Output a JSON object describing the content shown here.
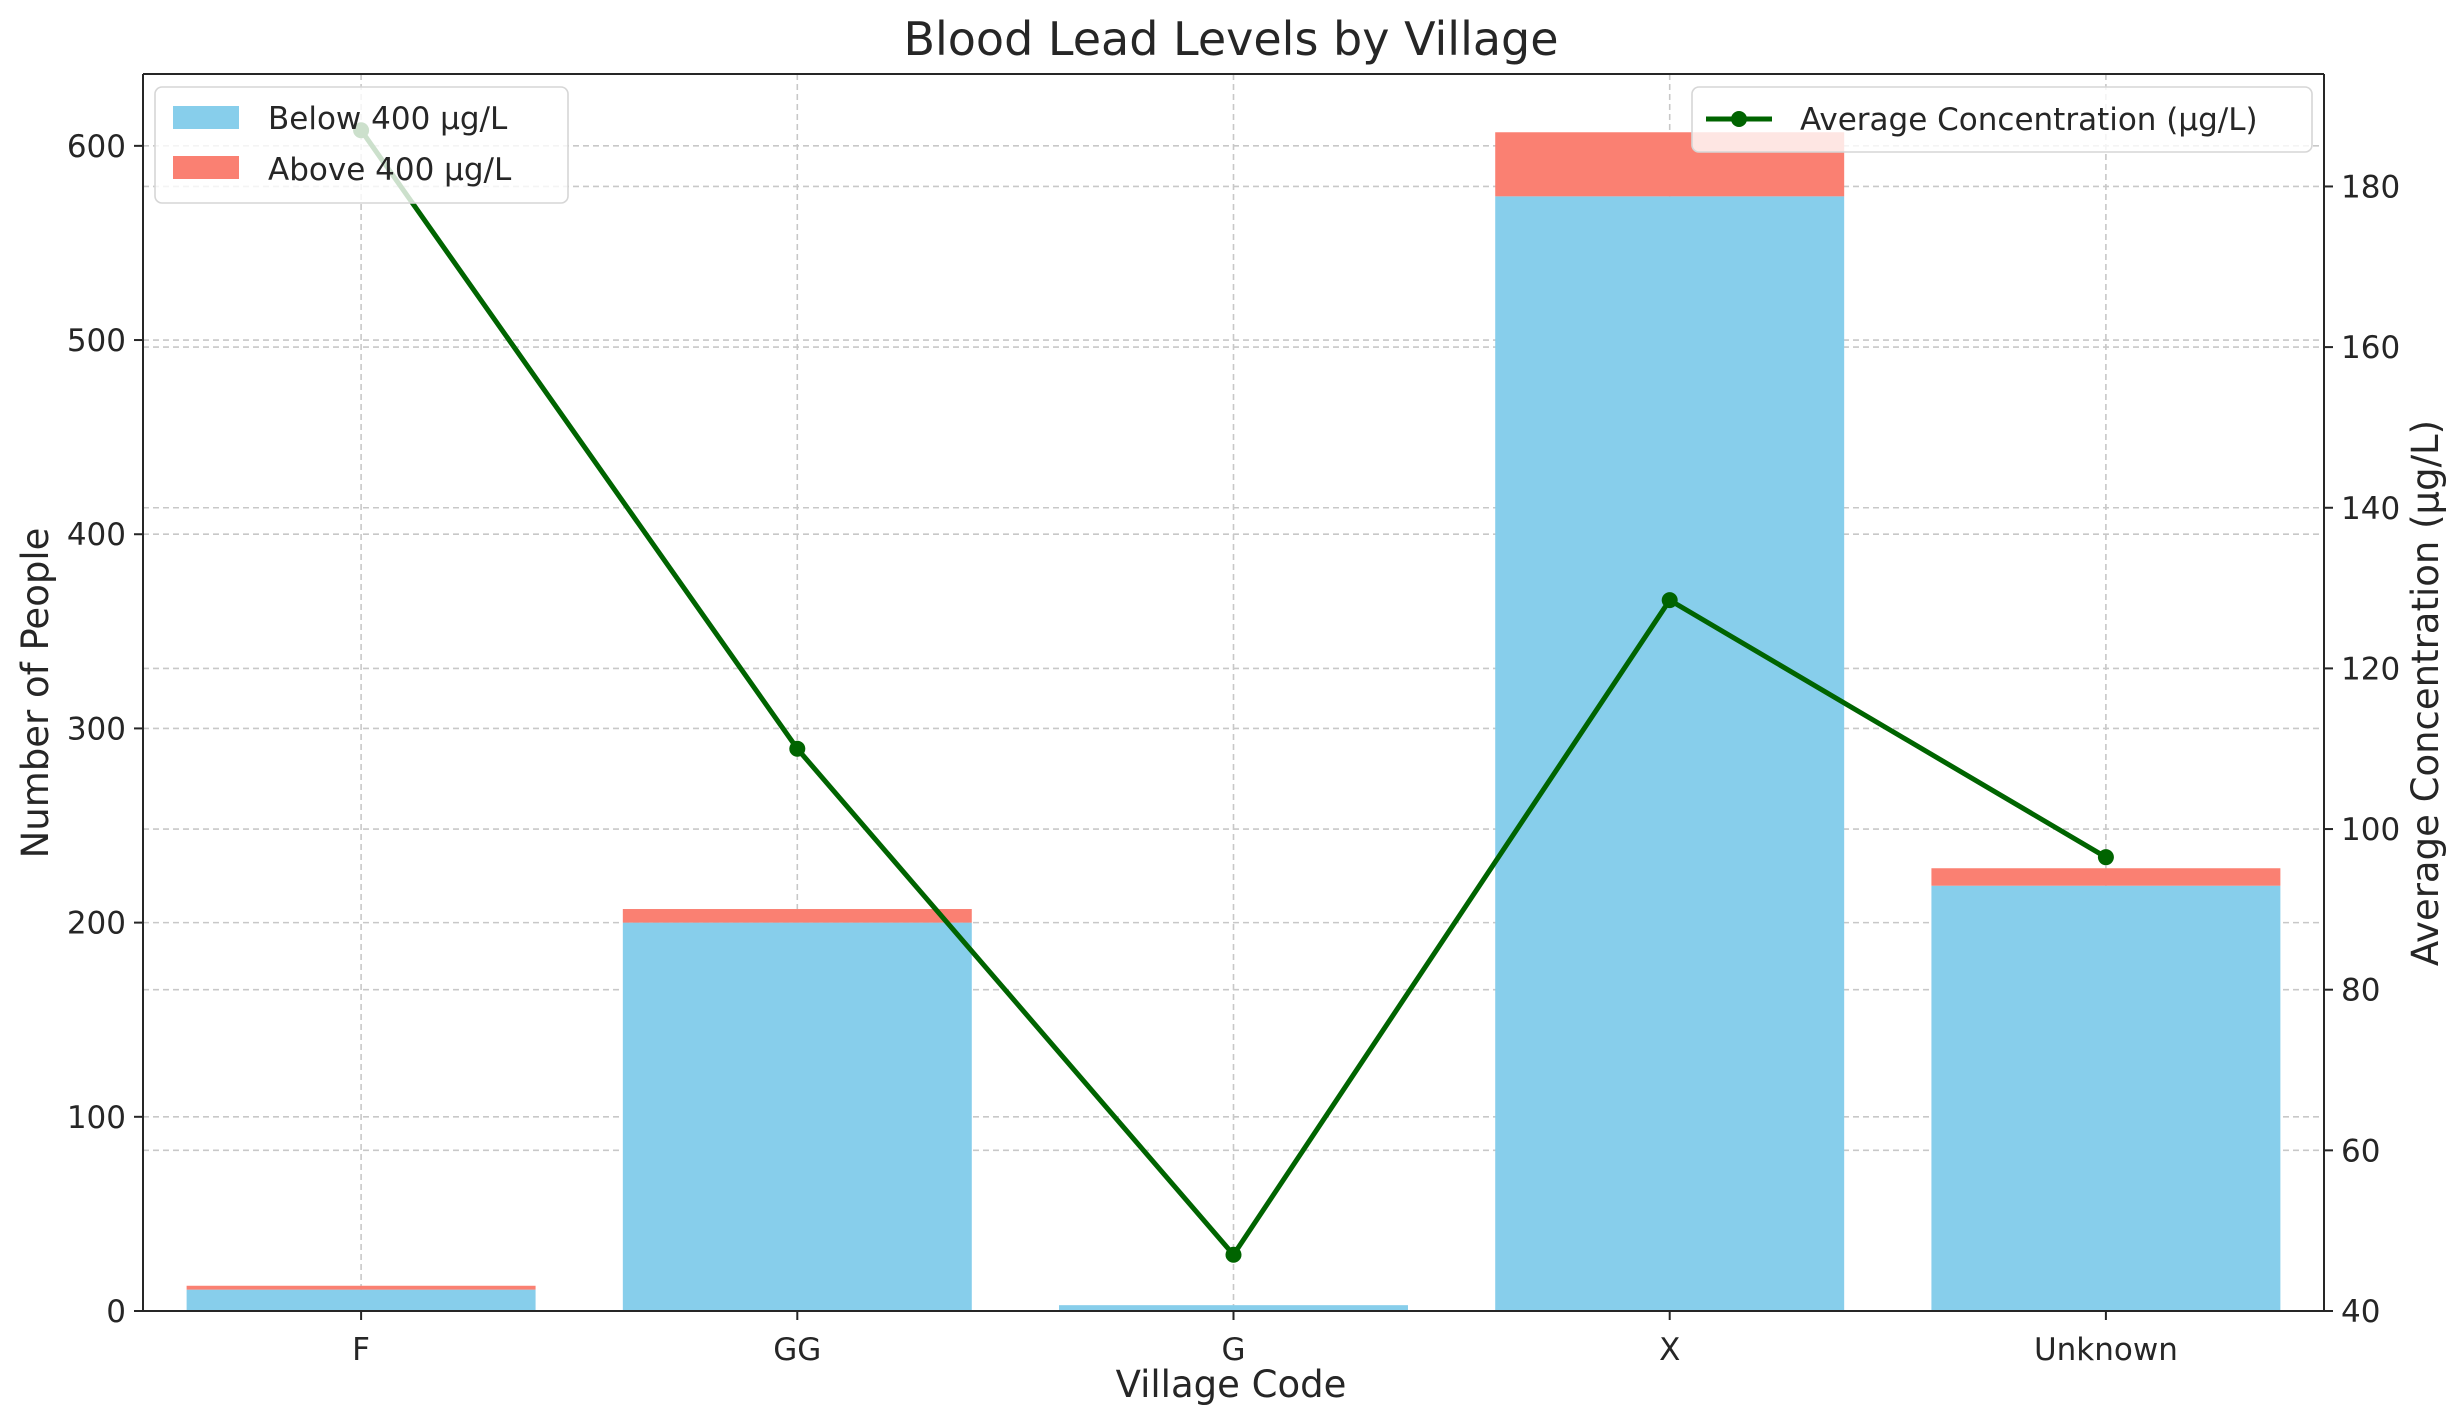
{
  "chart_data": {
    "type": "bar",
    "stacked": true,
    "title": "Blood Lead Levels by Village",
    "xlabel": "Village Code",
    "ylabel": "Number of People",
    "y2label": "Average Concentration (µg/L)",
    "categories": [
      "F",
      "GG",
      "G",
      "X",
      "Unknown"
    ],
    "ylim": [
      0,
      637
    ],
    "y_ticks": [
      0,
      100,
      200,
      300,
      400,
      500,
      600
    ],
    "y2lim": [
      40,
      194
    ],
    "y2_ticks": [
      40,
      60,
      80,
      100,
      120,
      140,
      160,
      180
    ],
    "grid": true,
    "series": [
      {
        "name": "Below 400 µg/L",
        "values": [
          11,
          200,
          3,
          574,
          219
        ],
        "color": "#87ceeb",
        "axis": "left",
        "kind": "bar"
      },
      {
        "name": "Above 400 µg/L",
        "values": [
          2,
          7,
          0,
          33,
          9
        ],
        "color": "#fa8072",
        "axis": "left",
        "kind": "bar"
      },
      {
        "name": "Average Concentration (µg/L)",
        "values": [
          187,
          110,
          47,
          128.5,
          96.5
        ],
        "color": "#006400",
        "axis": "right",
        "kind": "line"
      }
    ],
    "legend_bars_position": "top-left",
    "legend_line_position": "top-right"
  }
}
